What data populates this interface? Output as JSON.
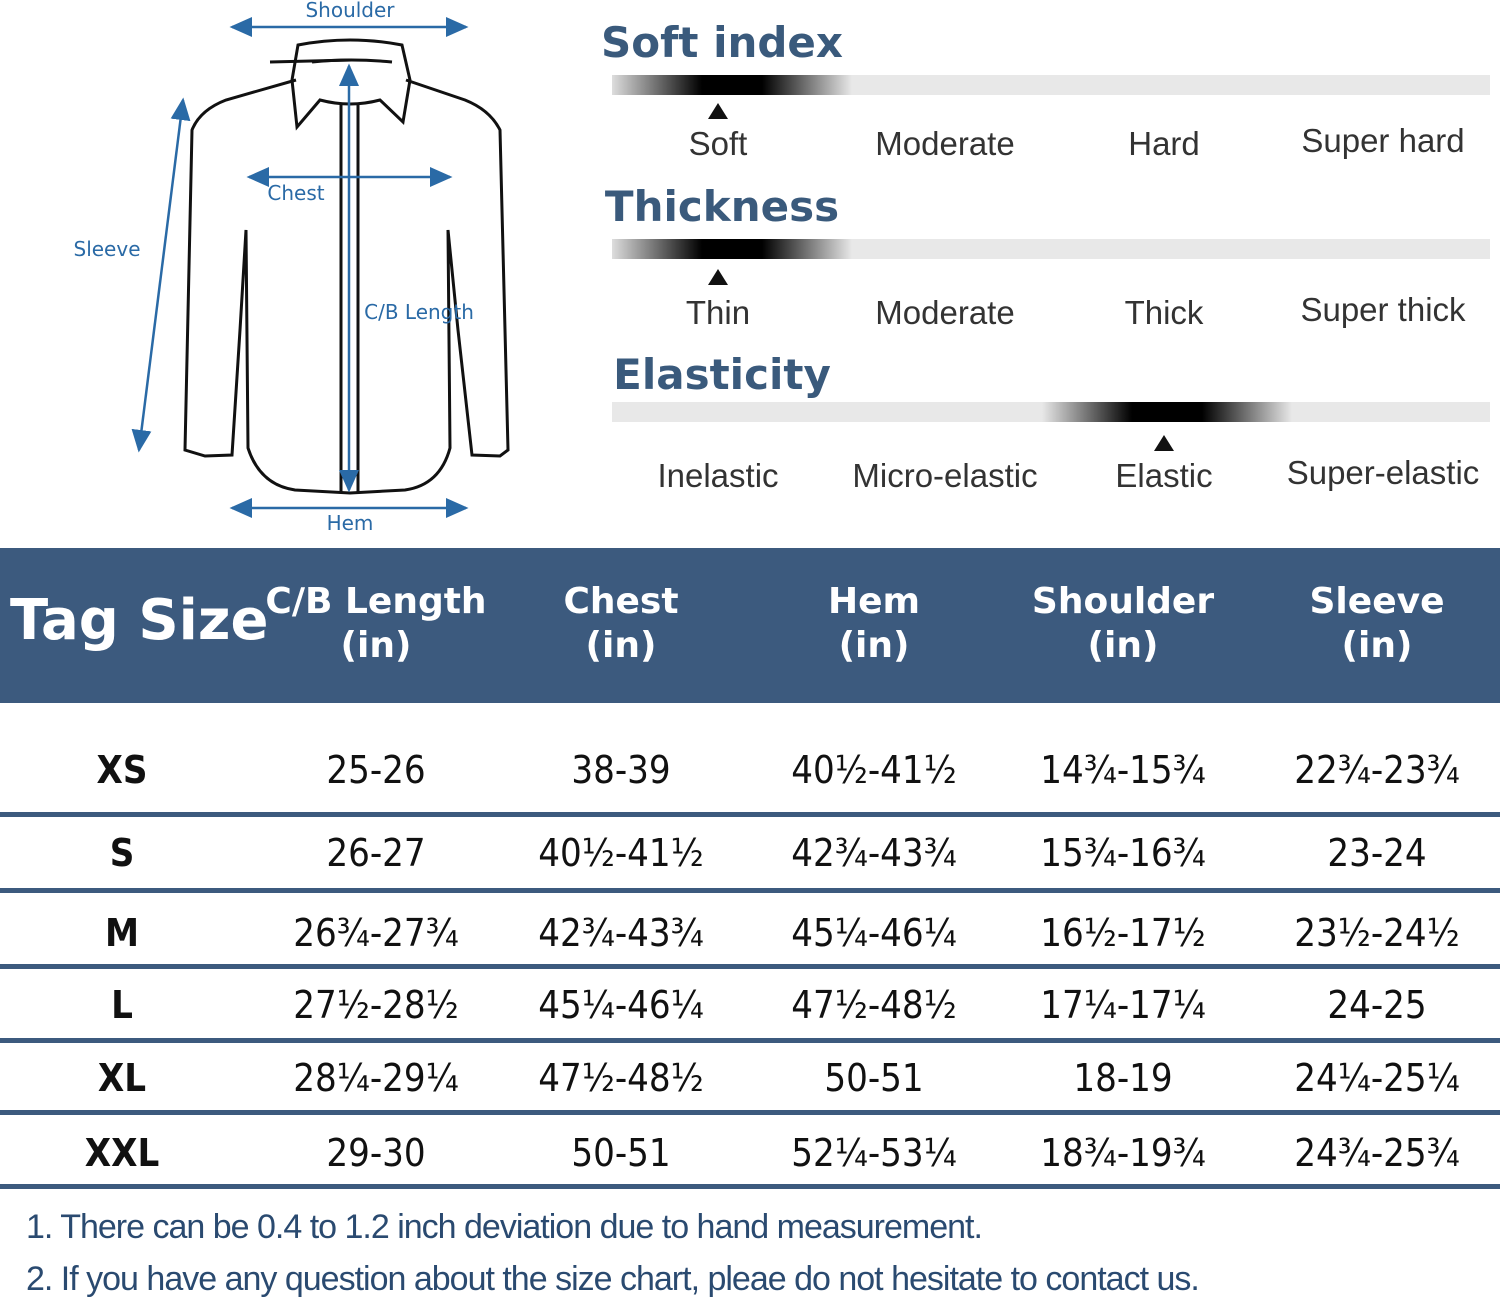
{
  "diagram": {
    "shoulder": "Shoulder",
    "chest": "Chest",
    "sleeve": "Sleeve",
    "cb_length": "C/B Length",
    "hem": "Hem"
  },
  "attributes": [
    {
      "title": "Soft index",
      "levels": [
        "Soft",
        "Moderate",
        "Hard",
        "Super hard"
      ],
      "selected_index": 0
    },
    {
      "title": "Thickness",
      "levels": [
        "Thin",
        "Moderate",
        "Thick",
        "Super thick"
      ],
      "selected_index": 0
    },
    {
      "title": "Elasticity",
      "levels": [
        "Inelastic",
        "Micro-elastic",
        "Elastic",
        "Super-elastic"
      ],
      "selected_index": 2
    }
  ],
  "table": {
    "header_color": "#3c5a7e",
    "tag_size": "Tag Size",
    "columns": [
      {
        "name": "C/B Length",
        "unit": "(in)"
      },
      {
        "name": "Chest",
        "unit": "(in)"
      },
      {
        "name": "Hem",
        "unit": "(in)"
      },
      {
        "name": "Shoulder",
        "unit": "(in)"
      },
      {
        "name": "Sleeve",
        "unit": "(in)"
      }
    ],
    "rows": [
      {
        "size": "XS",
        "values": [
          "25-26",
          "38-39",
          "40½-41½",
          "14¾-15¾",
          "22¾-23¾"
        ]
      },
      {
        "size": "S",
        "values": [
          "26-27",
          "40½-41½",
          "42¾-43¾",
          "15¾-16¾",
          "23-24"
        ]
      },
      {
        "size": "M",
        "values": [
          "26¾-27¾",
          "42¾-43¾",
          "45¼-46¼",
          "16½-17½",
          "23½-24½"
        ]
      },
      {
        "size": "L",
        "values": [
          "27½-28½",
          "45¼-46¼",
          "47½-48½",
          "17¼-17¼",
          "24-25"
        ]
      },
      {
        "size": "XL",
        "values": [
          "28¼-29¼",
          "47½-48½",
          "50-51",
          "18-19",
          "24¼-25¼"
        ]
      },
      {
        "size": "XXL",
        "values": [
          "29-30",
          "50-51",
          "52¼-53¼",
          "18¾-19¾",
          "24¾-25¾"
        ]
      }
    ]
  },
  "notes": [
    "1. There can be 0.4 to 1.2 inch deviation due to hand measurement.",
    "2. If you have any question about the size chart, pleae do not hesitate to contact us."
  ]
}
